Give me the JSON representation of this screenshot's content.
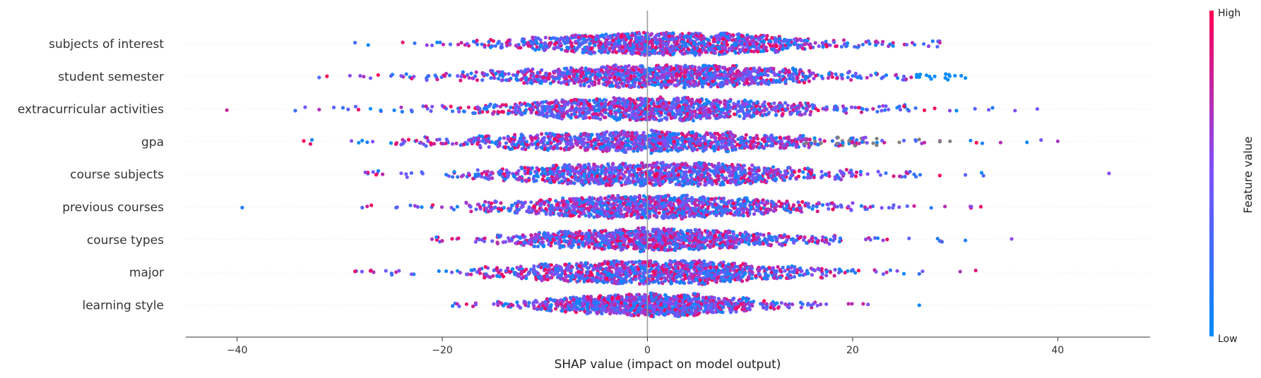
{
  "chart_data": {
    "type": "scatter",
    "subtype": "beeswarm",
    "xlabel": "SHAP value (impact on model output)",
    "xlim": [
      -45,
      49
    ],
    "xticks": [
      -40,
      -20,
      0,
      20,
      40
    ],
    "xtick_labels": [
      "−40",
      "−20",
      "0",
      "20",
      "40"
    ],
    "zero_line": 0,
    "grid": false,
    "features": [
      {
        "name": "subjects of interest",
        "range": [
          -28.5,
          28.5
        ],
        "spread": 7.5,
        "peak": 1.5,
        "outliers": [
          -28.5,
          -21.5,
          -20.5,
          19.5,
          20.5,
          21.0,
          23.5,
          28.5
        ]
      },
      {
        "name": "student semester",
        "range": [
          -32.0,
          31.0
        ],
        "spread": 8.5,
        "peak": 1.0,
        "outliers": [
          -32.0,
          -29.0,
          -27.0,
          -25.0,
          -24.0,
          23.0,
          25.0,
          26.5,
          27.5,
          28.0,
          31.0
        ]
      },
      {
        "name": "extracurricular activities",
        "range": [
          -41.0,
          38.0
        ],
        "spread": 8.0,
        "peak": 0.5,
        "outliers": [
          -41.0,
          -32.0,
          -27.0,
          -26.0,
          -24.0,
          22.0,
          23.5,
          25.0,
          27.0,
          28.0,
          38.0
        ]
      },
      {
        "name": "gpa",
        "range": [
          -33.5,
          40.0
        ],
        "spread": 9.0,
        "peak": 0.0,
        "outliers": [
          -33.5,
          -25.0,
          -24.0,
          25.0,
          27.0,
          28.5,
          29.5,
          31.5,
          37.0,
          40.0
        ]
      },
      {
        "name": "course subjects",
        "range": [
          -27.5,
          45.0
        ],
        "spread": 8.0,
        "peak": 0.5,
        "outliers": [
          -27.5,
          -24.0,
          -22.0,
          22.5,
          24.0,
          26.0,
          28.5,
          31.0,
          45.0
        ]
      },
      {
        "name": "previous courses",
        "range": [
          -39.5,
          32.5
        ],
        "spread": 7.5,
        "peak": 0.5,
        "outliers": [
          -39.5,
          -24.5,
          -22.0,
          24.0,
          26.0,
          29.0,
          32.5
        ]
      },
      {
        "name": "course types",
        "range": [
          -21.0,
          35.5
        ],
        "spread": 7.0,
        "peak": 0.5,
        "outliers": [
          -21.0,
          -20.0,
          25.5,
          28.5,
          31.0,
          35.5
        ]
      },
      {
        "name": "major",
        "range": [
          -28.5,
          32.0
        ],
        "spread": 7.0,
        "peak": 0.5,
        "outliers": [
          -28.5,
          -27.0,
          -25.5,
          -24.5,
          23.0,
          25.0,
          26.5,
          32.0
        ]
      },
      {
        "name": "learning style",
        "range": [
          -19.0,
          26.5
        ],
        "spread": 5.5,
        "peak": 0.0,
        "outliers": [
          -19.0,
          -17.0,
          21.5,
          26.5
        ]
      }
    ],
    "colorbar": {
      "title": "Feature value",
      "high_label": "High",
      "low_label": "Low",
      "high_color": "#ff0052",
      "mid_color": "#7c52ff",
      "low_color": "#008bfb"
    },
    "missing_color": "#808080",
    "points_per_feature": 1200
  }
}
